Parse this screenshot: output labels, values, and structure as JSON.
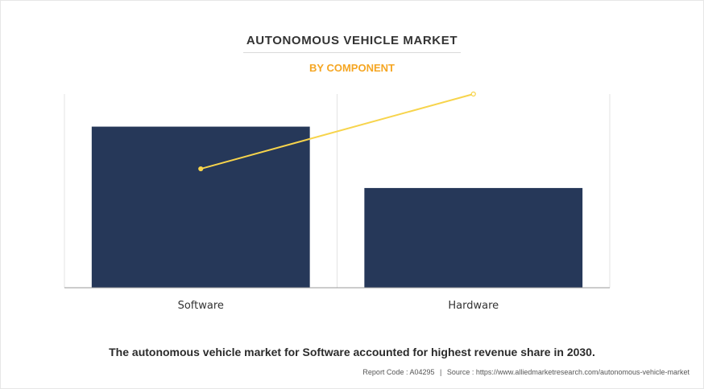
{
  "title": "AUTONOMOUS VEHICLE MARKET",
  "subtitle": "BY COMPONENT",
  "caption": "The autonomous vehicle market for Software accounted for highest revenue share in 2030.",
  "source": {
    "report_code": "Report Code : A04295",
    "separator": "|",
    "source_text": "Source : https://www.alliedmarketresearch.com/autonomous-vehicle-market"
  },
  "colors": {
    "bar": "#263859",
    "line": "#f7d44c",
    "subtitle": "#f5a623"
  },
  "chart_data": {
    "type": "bar",
    "categories": [
      "Software",
      "Hardware"
    ],
    "series": [
      {
        "type": "bar",
        "values": [
          84,
          52
        ]
      },
      {
        "type": "line",
        "values": [
          62,
          101
        ]
      }
    ],
    "ylim": [
      0,
      101
    ],
    "grid": "vertical category dividers",
    "legend": "none"
  }
}
